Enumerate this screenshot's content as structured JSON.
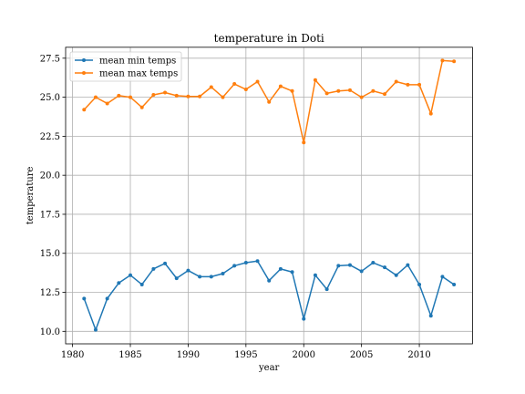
{
  "chart_data": {
    "type": "line",
    "title": "temperature in Doti",
    "xlabel": "year",
    "ylabel": "temperature",
    "xlim": [
      1979.4,
      2014.6
    ],
    "ylim": [
      9.2,
      28.2
    ],
    "xticks": [
      1980,
      1985,
      1990,
      1995,
      2000,
      2005,
      2010
    ],
    "yticks": [
      10.0,
      12.5,
      15.0,
      17.5,
      20.0,
      22.5,
      25.0,
      27.5
    ],
    "xtick_labels": [
      "1980",
      "1985",
      "1990",
      "1995",
      "2000",
      "2005",
      "2010"
    ],
    "ytick_labels": [
      "10.0",
      "12.5",
      "15.0",
      "17.5",
      "20.0",
      "22.5",
      "25.0",
      "27.5"
    ],
    "grid": true,
    "legend_position": "top-left",
    "x": [
      1981,
      1982,
      1983,
      1984,
      1985,
      1986,
      1987,
      1988,
      1989,
      1990,
      1991,
      1992,
      1993,
      1994,
      1995,
      1996,
      1997,
      1998,
      1999,
      2000,
      2001,
      2002,
      2003,
      2004,
      2005,
      2006,
      2007,
      2008,
      2009,
      2010,
      2011,
      2012,
      2013
    ],
    "series": [
      {
        "name": "mean min temps",
        "color": "#1f77b4",
        "values": [
          12.1,
          10.1,
          12.1,
          13.1,
          13.6,
          13.0,
          14.0,
          14.35,
          13.4,
          13.9,
          13.5,
          13.5,
          13.7,
          14.2,
          14.4,
          14.5,
          13.25,
          14.0,
          13.8,
          10.8,
          13.6,
          12.7,
          14.2,
          14.25,
          13.85,
          14.4,
          14.1,
          13.6,
          14.25,
          13.0,
          11.0,
          13.5,
          13.0
        ]
      },
      {
        "name": "mean max temps",
        "color": "#ff7f0e",
        "values": [
          24.2,
          25.0,
          24.6,
          25.1,
          25.0,
          24.35,
          25.15,
          25.3,
          25.1,
          25.05,
          25.05,
          25.65,
          25.0,
          25.85,
          25.5,
          26.0,
          24.7,
          25.7,
          25.4,
          22.1,
          26.1,
          25.25,
          25.4,
          25.45,
          25.0,
          25.4,
          25.2,
          26.0,
          25.8,
          25.8,
          23.95,
          27.35,
          27.3
        ]
      }
    ]
  }
}
